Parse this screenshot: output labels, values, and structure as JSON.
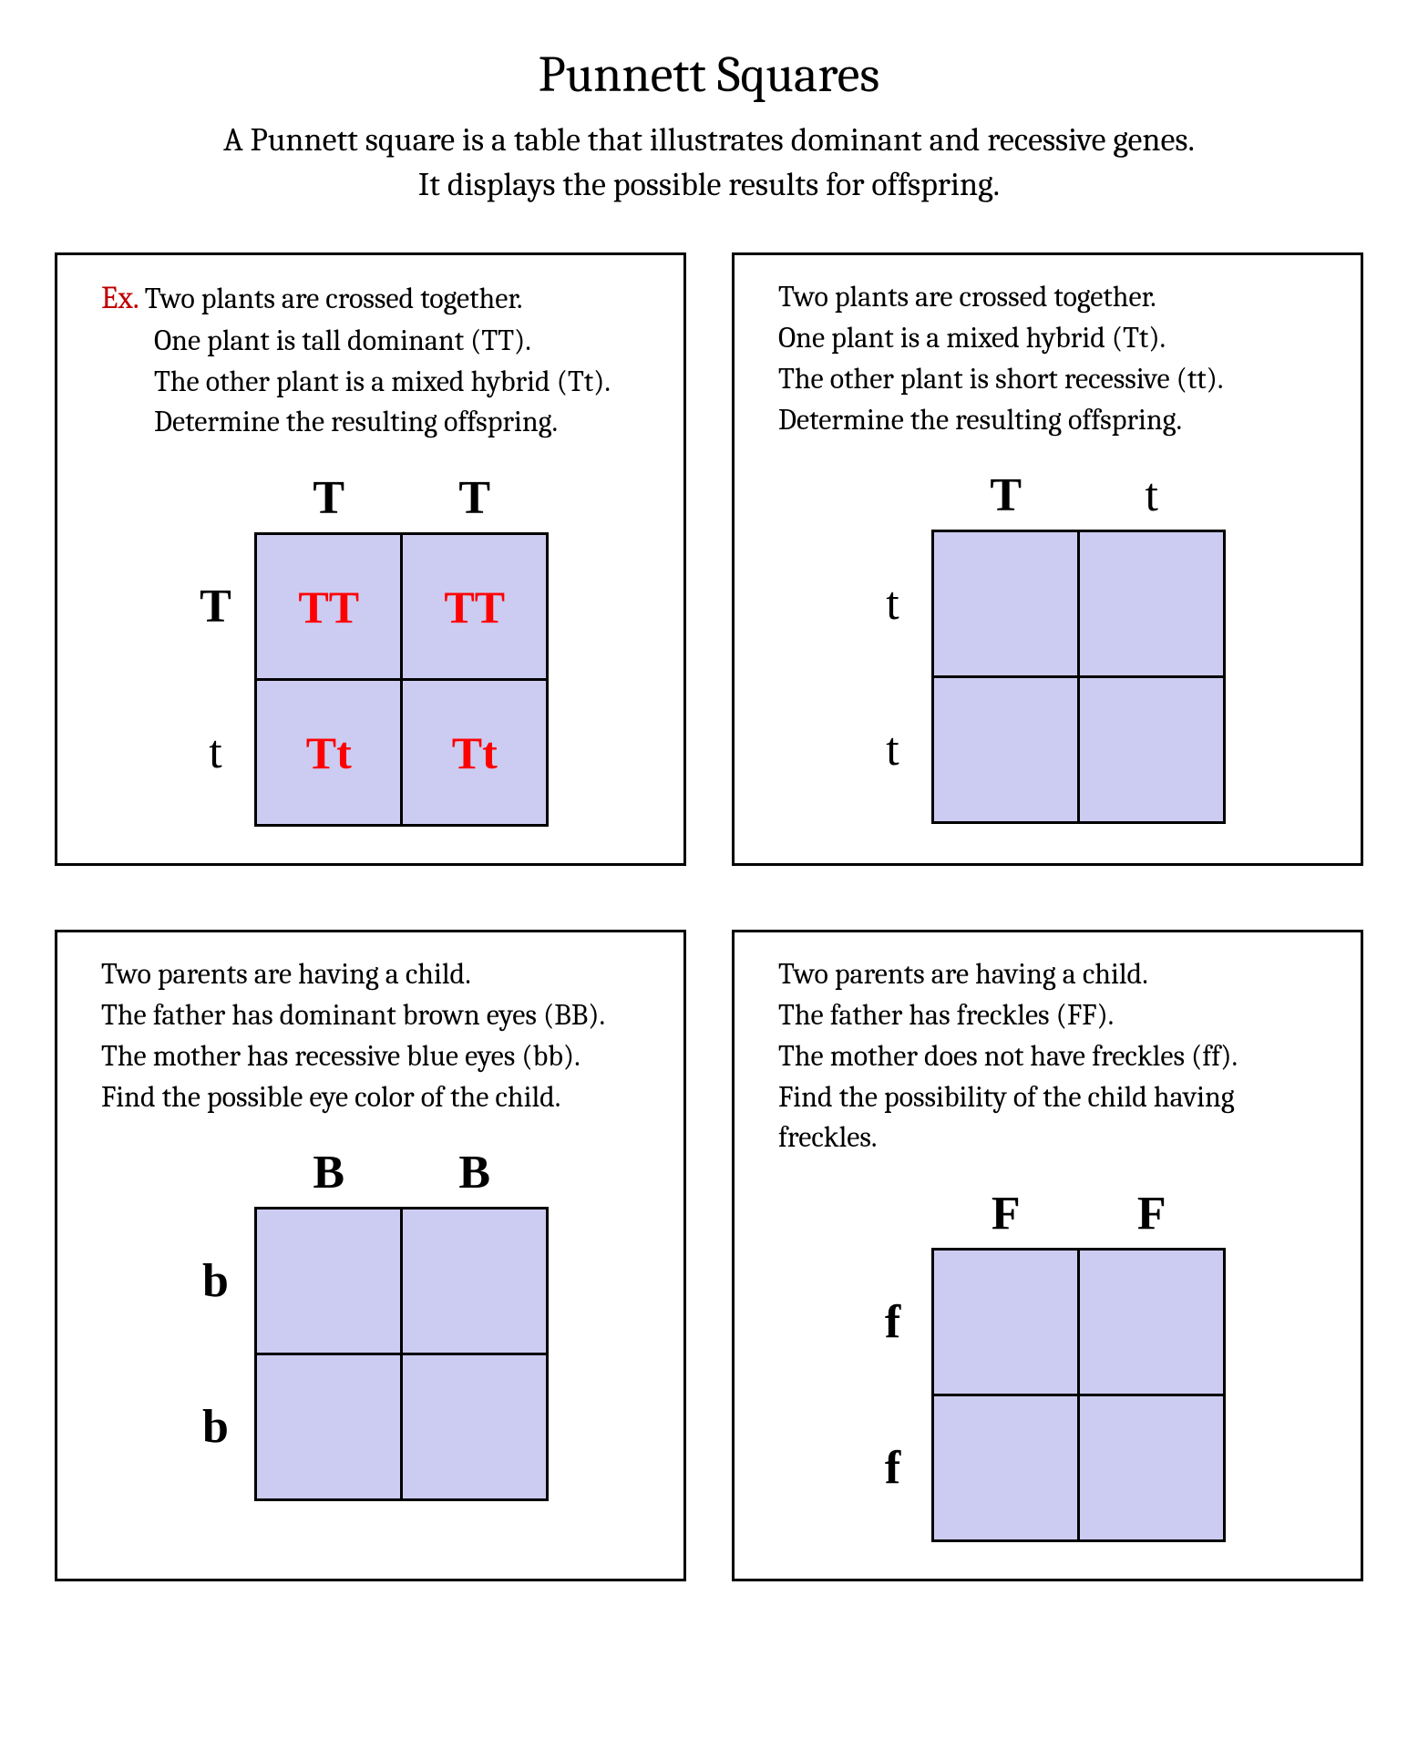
{
  "title": "Punnett Squares",
  "subtitle_l1": "A Punnett square is a table that illustrates dominant and recessive genes.",
  "subtitle_l2": "It displays the possible results for offspring.",
  "ex_label": "Ex.",
  "colors": {
    "cell_fill": "#ccccf2",
    "cell_border": "#000000",
    "answer_text": "#ff0000",
    "ex_color": "#c00000",
    "panel_border": "#000000",
    "background": "#ffffff"
  },
  "panels": [
    {
      "is_example": true,
      "prompt_lines": [
        "Two plants are crossed together.",
        "One plant is tall dominant (TT).",
        "The other plant is a mixed hybrid (Tt).",
        "Determine the resulting offspring."
      ],
      "top": [
        "T",
        "T"
      ],
      "top_bold": [
        true,
        true
      ],
      "left": [
        "T",
        "t"
      ],
      "left_bold": [
        true,
        false
      ],
      "cells": [
        [
          "TT",
          "TT"
        ],
        [
          "Tt",
          "Tt"
        ]
      ]
    },
    {
      "is_example": false,
      "prompt_lines": [
        "Two plants are crossed together.",
        "One plant is a mixed hybrid (Tt).",
        "The other plant is short recessive (tt).",
        "Determine the resulting offspring."
      ],
      "top": [
        "T",
        "t"
      ],
      "top_bold": [
        true,
        false
      ],
      "left": [
        "t",
        "t"
      ],
      "left_bold": [
        false,
        false
      ],
      "cells": [
        [
          "",
          ""
        ],
        [
          "",
          ""
        ]
      ]
    },
    {
      "is_example": false,
      "prompt_lines": [
        "Two parents are having a child.",
        "The father has dominant brown eyes (BB).",
        "The mother has recessive blue eyes (bb).",
        "Find the possible eye color of the child."
      ],
      "top": [
        "B",
        "B"
      ],
      "top_bold": [
        true,
        true
      ],
      "left": [
        "b",
        "b"
      ],
      "left_bold": [
        true,
        true
      ],
      "cells": [
        [
          "",
          ""
        ],
        [
          "",
          ""
        ]
      ]
    },
    {
      "is_example": false,
      "prompt_lines": [
        "Two parents are having a child.",
        "The father has freckles (FF).",
        "The mother does not have freckles (ff).",
        "Find the possibility of the child having freckles."
      ],
      "top": [
        "F",
        "F"
      ],
      "top_bold": [
        true,
        true
      ],
      "left": [
        "f",
        "f"
      ],
      "left_bold": [
        true,
        true
      ],
      "cells": [
        [
          "",
          ""
        ],
        [
          "",
          ""
        ]
      ]
    }
  ]
}
